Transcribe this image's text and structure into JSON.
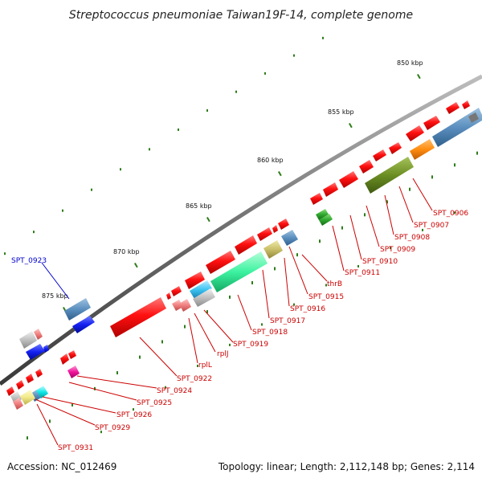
{
  "title": "Streptococcus pneumoniae Taiwan19F-14, complete genome",
  "accession": "Accession: NC_012469",
  "topology": "Topology: linear; Length: 2,112,148 bp; Genes: 2,114",
  "colors": {
    "label_red": "#cc0000",
    "label_blue": "#0000cc",
    "tick_green": "#2e7d1a",
    "backbone": "#777777"
  },
  "scale_labels": [
    "850 kbp",
    "855 kbp",
    "860 kbp",
    "865 kbp",
    "870 kbp",
    "875 kbp"
  ],
  "gene_labels": [
    {
      "text": "SPT_0906",
      "color": "red"
    },
    {
      "text": "SPT_0907",
      "color": "red"
    },
    {
      "text": "SPT_0908",
      "color": "red"
    },
    {
      "text": "SPT_0909",
      "color": "red"
    },
    {
      "text": "SPT_0910",
      "color": "red"
    },
    {
      "text": "SPT_0911",
      "color": "red"
    },
    {
      "text": "thrB",
      "color": "red"
    },
    {
      "text": "SPT_0915",
      "color": "red"
    },
    {
      "text": "SPT_0916",
      "color": "red"
    },
    {
      "text": "SPT_0917",
      "color": "red"
    },
    {
      "text": "SPT_0918",
      "color": "red"
    },
    {
      "text": "SPT_0919",
      "color": "red"
    },
    {
      "text": "rplJ",
      "color": "red"
    },
    {
      "text": "rplL",
      "color": "red"
    },
    {
      "text": "SPT_0922",
      "color": "red"
    },
    {
      "text": "SPT_0923",
      "color": "blue"
    },
    {
      "text": "SPT_0924",
      "color": "red"
    },
    {
      "text": "SPT_0925",
      "color": "red"
    },
    {
      "text": "SPT_0926",
      "color": "red"
    },
    {
      "text": "SPT_0929",
      "color": "red"
    },
    {
      "text": "SPT_0931",
      "color": "red"
    }
  ]
}
